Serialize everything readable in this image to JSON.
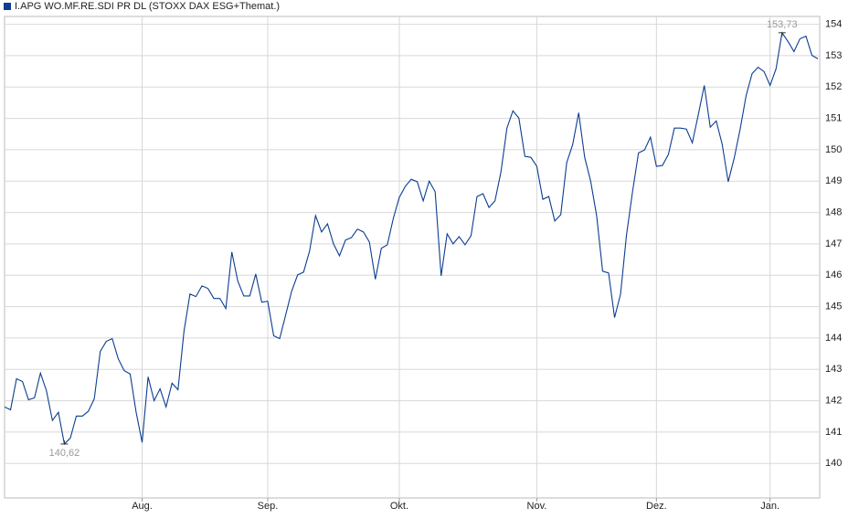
{
  "chart_data": {
    "type": "line",
    "series": [
      {
        "name": "I.APG WO.MF.RE.SDI PR DL (STOXX DAX ESG+Themat.)",
        "color": "#0b3d91",
        "values": [
          141.8,
          141.71,
          142.7,
          142.61,
          142.03,
          142.09,
          142.88,
          142.32,
          141.37,
          141.63,
          140.62,
          140.81,
          141.51,
          141.51,
          141.66,
          142.06,
          143.57,
          143.89,
          143.98,
          143.34,
          142.96,
          142.85,
          141.63,
          140.67,
          142.76,
          142.0,
          142.38,
          141.8,
          142.56,
          142.35,
          144.21,
          145.4,
          145.32,
          145.66,
          145.58,
          145.26,
          145.26,
          144.94,
          146.74,
          145.81,
          145.34,
          145.34,
          146.04,
          145.14,
          145.17,
          144.07,
          143.98,
          144.73,
          145.49,
          146.01,
          146.1,
          146.77,
          147.9,
          147.38,
          147.64,
          147.0,
          146.62,
          147.12,
          147.2,
          147.47,
          147.38,
          147.06,
          145.87,
          146.86,
          146.97,
          147.81,
          148.48,
          148.83,
          149.06,
          148.98,
          148.37,
          149.0,
          148.66,
          145.98,
          147.32,
          147.0,
          147.23,
          146.97,
          147.26,
          148.51,
          148.6,
          148.16,
          148.37,
          149.29,
          150.69,
          151.24,
          151.01,
          149.79,
          149.76,
          149.47,
          148.42,
          148.51,
          147.73,
          147.93,
          149.59,
          150.17,
          151.18,
          149.76,
          149.0,
          147.9,
          146.13,
          146.07,
          144.65,
          145.4,
          147.29,
          148.66,
          149.9,
          149.99,
          150.4,
          149.47,
          149.5,
          149.85,
          150.69,
          150.69,
          150.66,
          150.22,
          151.12,
          152.05,
          150.72,
          150.92,
          150.17,
          148.98,
          149.73,
          150.66,
          151.73,
          152.43,
          152.63,
          152.49,
          152.05,
          152.58,
          153.73,
          153.45,
          153.13,
          153.54,
          153.62,
          153.01,
          152.9
        ],
        "value_labels": [
          null,
          null,
          null,
          null,
          null,
          null,
          null,
          null,
          null,
          null,
          "140,62",
          null,
          null,
          null,
          null,
          null,
          null,
          null,
          null,
          null,
          null,
          null,
          null,
          null,
          null,
          null,
          null,
          null,
          null,
          null,
          null,
          null,
          null,
          null,
          null,
          null,
          null,
          null,
          null,
          null,
          null,
          null,
          null,
          null,
          null,
          null,
          null,
          null,
          null,
          null,
          null,
          null,
          null,
          null,
          null,
          null,
          null,
          null,
          null,
          null,
          null,
          null,
          null,
          null,
          null,
          null,
          null,
          null,
          null,
          null,
          null,
          null,
          null,
          null,
          null,
          null,
          null,
          null,
          null,
          null,
          null,
          null,
          null,
          null,
          null,
          null,
          null,
          null,
          null,
          null,
          null,
          null,
          null,
          null,
          null,
          null,
          null,
          null,
          null,
          null,
          null,
          null,
          null,
          null,
          null,
          null,
          null,
          null,
          null,
          null,
          null,
          null,
          null,
          null,
          null,
          null,
          null,
          null,
          null,
          null,
          null,
          null,
          null,
          null,
          null,
          null,
          null,
          null,
          null,
          null,
          "153,73",
          null,
          null,
          null,
          null,
          null,
          null
        ]
      }
    ],
    "xlim": [
      0,
      136.3
    ],
    "xticks": [
      {
        "value": 23,
        "label": "Aug."
      },
      {
        "value": 44,
        "label": "Sep."
      },
      {
        "value": 66,
        "label": "Okt."
      },
      {
        "value": 89,
        "label": "Nov."
      },
      {
        "value": 109,
        "label": "Dez."
      },
      {
        "value": 128,
        "label": "Jan."
      }
    ],
    "ylim": [
      138.9,
      154.25
    ],
    "yticks": [
      140,
      141,
      142,
      143,
      144,
      145,
      146,
      147,
      148,
      149,
      150,
      151,
      152,
      153,
      154
    ],
    "grid": true
  }
}
